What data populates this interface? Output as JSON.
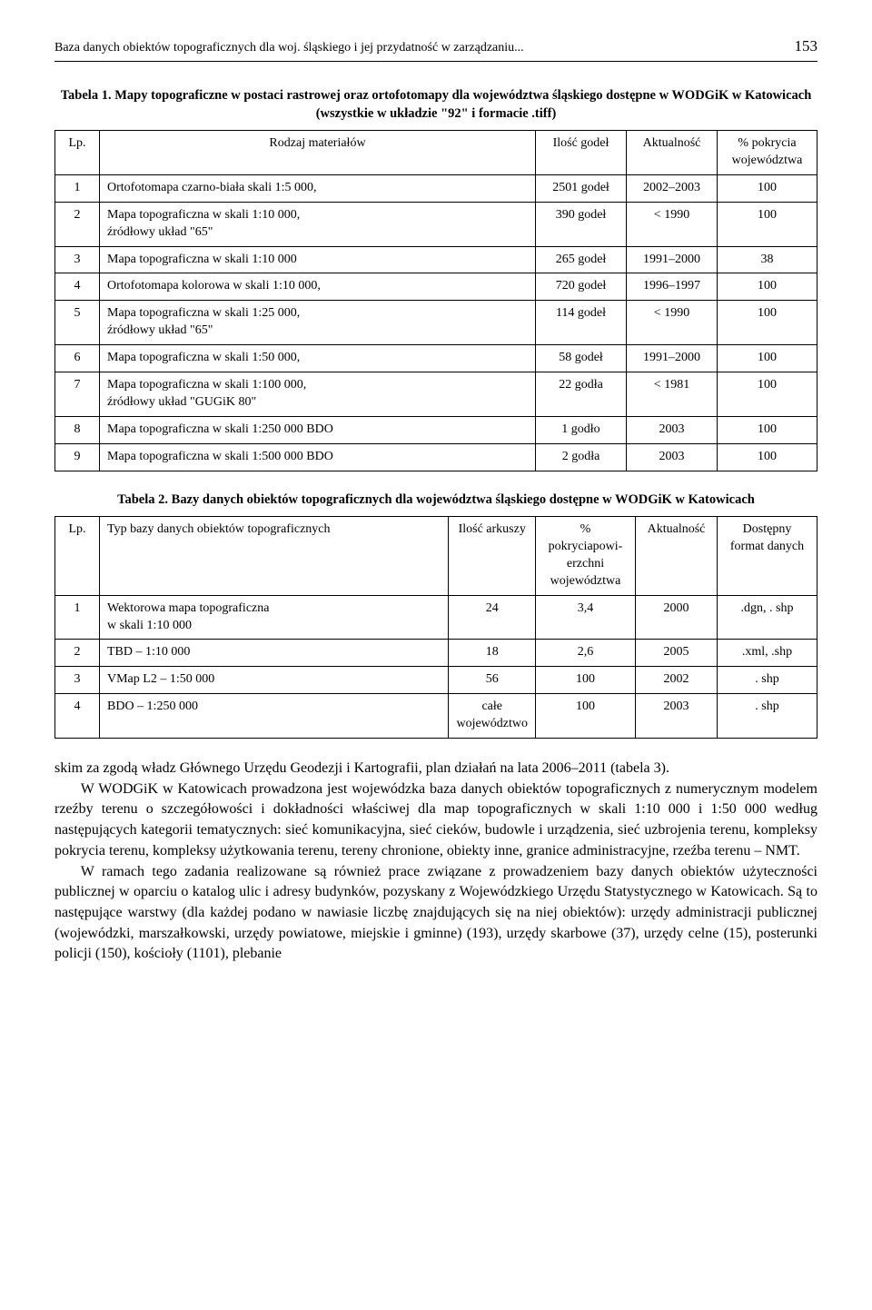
{
  "header": {
    "title": "Baza danych obiektów topograficznych dla woj. śląskiego i jej przydatność w zarządzaniu...",
    "page": "153"
  },
  "table1": {
    "caption": "Tabela 1. Mapy topograficzne w postaci rastrowej oraz ortofotomapy dla województwa śląskiego dostępne w WODGiK w Katowicach (wszystkie w układzie \"92\" i formacie .tiff)",
    "columns": [
      "Lp.",
      "Rodzaj materiałów",
      "Ilość godeł",
      "Aktualność",
      "% pokrycia województwa"
    ],
    "rows": [
      [
        "1",
        "Ortofotomapa czarno-biała  skali 1:5 000,",
        "2501 godeł",
        "2002–2003",
        "100"
      ],
      [
        "2",
        "Mapa topograficzna w skali 1:10 000,\nźródłowy układ \"65\"",
        "390 godeł",
        "< 1990",
        "100"
      ],
      [
        "3",
        "Mapa topograficzna w skali 1:10 000",
        "265 godeł",
        "1991–2000",
        "38"
      ],
      [
        "4",
        "Ortofotomapa kolorowa w skali 1:10 000,",
        "720 godeł",
        "1996–1997",
        "100"
      ],
      [
        "5",
        "Mapa topograficzna w skali 1:25 000,\nźródłowy układ \"65\"",
        "114 godeł",
        "< 1990",
        "100"
      ],
      [
        "6",
        "Mapa topograficzna w skali 1:50 000,",
        "58 godeł",
        "1991–2000",
        "100"
      ],
      [
        "7",
        "Mapa topograficzna w skali 1:100 000,\nźródłowy układ \"GUGiK 80\"",
        "22 godła",
        "< 1981",
        "100"
      ],
      [
        "8",
        "Mapa topograficzna w skali 1:250 000 BDO",
        "1 godło",
        "2003",
        "100"
      ],
      [
        "9",
        "Mapa topograficzna w skali 1:500 000 BDO",
        "2 godła",
        "2003",
        "100"
      ]
    ],
    "col_widths": [
      "36px",
      "auto",
      "100px",
      "100px",
      "110px"
    ]
  },
  "table2": {
    "caption": "Tabela 2. Bazy danych obiektów topograficznych dla województwa śląskiego dostępne w WODGiK w Katowicach",
    "columns": [
      "Lp.",
      "Typ bazy danych obiektów topograficznych",
      "Ilość arkuszy",
      "% pokryciapowi-erzchni województwa",
      "Aktualność",
      "Dostępny format danych"
    ],
    "rows": [
      [
        "1",
        "Wektorowa mapa topograficzna\nw skali 1:10 000",
        "24",
        "3,4",
        "2000",
        ".dgn, . shp"
      ],
      [
        "2",
        "TBD – 1:10 000",
        "18",
        "2,6",
        "2005",
        ".xml, .shp"
      ],
      [
        "3",
        "VMap L2 – 1:50 000",
        "56",
        "100",
        "2002",
        ". shp"
      ],
      [
        "4",
        "BDO – 1:250 000",
        "całe województwo",
        "100",
        "2003",
        ". shp"
      ]
    ],
    "col_widths": [
      "36px",
      "auto",
      "95px",
      "110px",
      "90px",
      "110px"
    ]
  },
  "body": {
    "p1": "skim za zgodą władz Głównego Urzędu Geodezji i Kartografii, plan działań na lata 2006–2011 (tabela 3).",
    "p2": "W WODGiK w Katowicach prowadzona jest wojewódzka baza danych obiektów topograficznych z numerycznym modelem rzeźby terenu o szczegółowości i dokładności właściwej dla map topograficznych w skali 1:10 000 i 1:50 000 według następujących kategorii tematycznych: sieć komunikacyjna, sieć cieków, budowle i urządzenia, sieć uzbrojenia terenu, kompleksy pokrycia terenu, kompleksy użytkowania terenu, tereny chronione, obiekty inne, granice administracyjne, rzeźba terenu – NMT.",
    "p3": "W ramach tego zadania realizowane są również prace związane z prowadzeniem bazy danych obiektów użyteczności publicznej w oparciu o katalog ulic i adresy budynków, pozyskany z Wojewódzkiego Urzędu Statystycznego w Katowicach. Są to następujące warstwy (dla każdej podano w nawiasie liczbę znajdujących się na niej obiektów): urzędy administracji publicznej (wojewódzki, marszałkowski, urzędy powiatowe, miejskie i gminne) (193), urzędy skarbowe (37), urzędy celne (15), posterunki policji (150), kościoły (1101), plebanie"
  }
}
